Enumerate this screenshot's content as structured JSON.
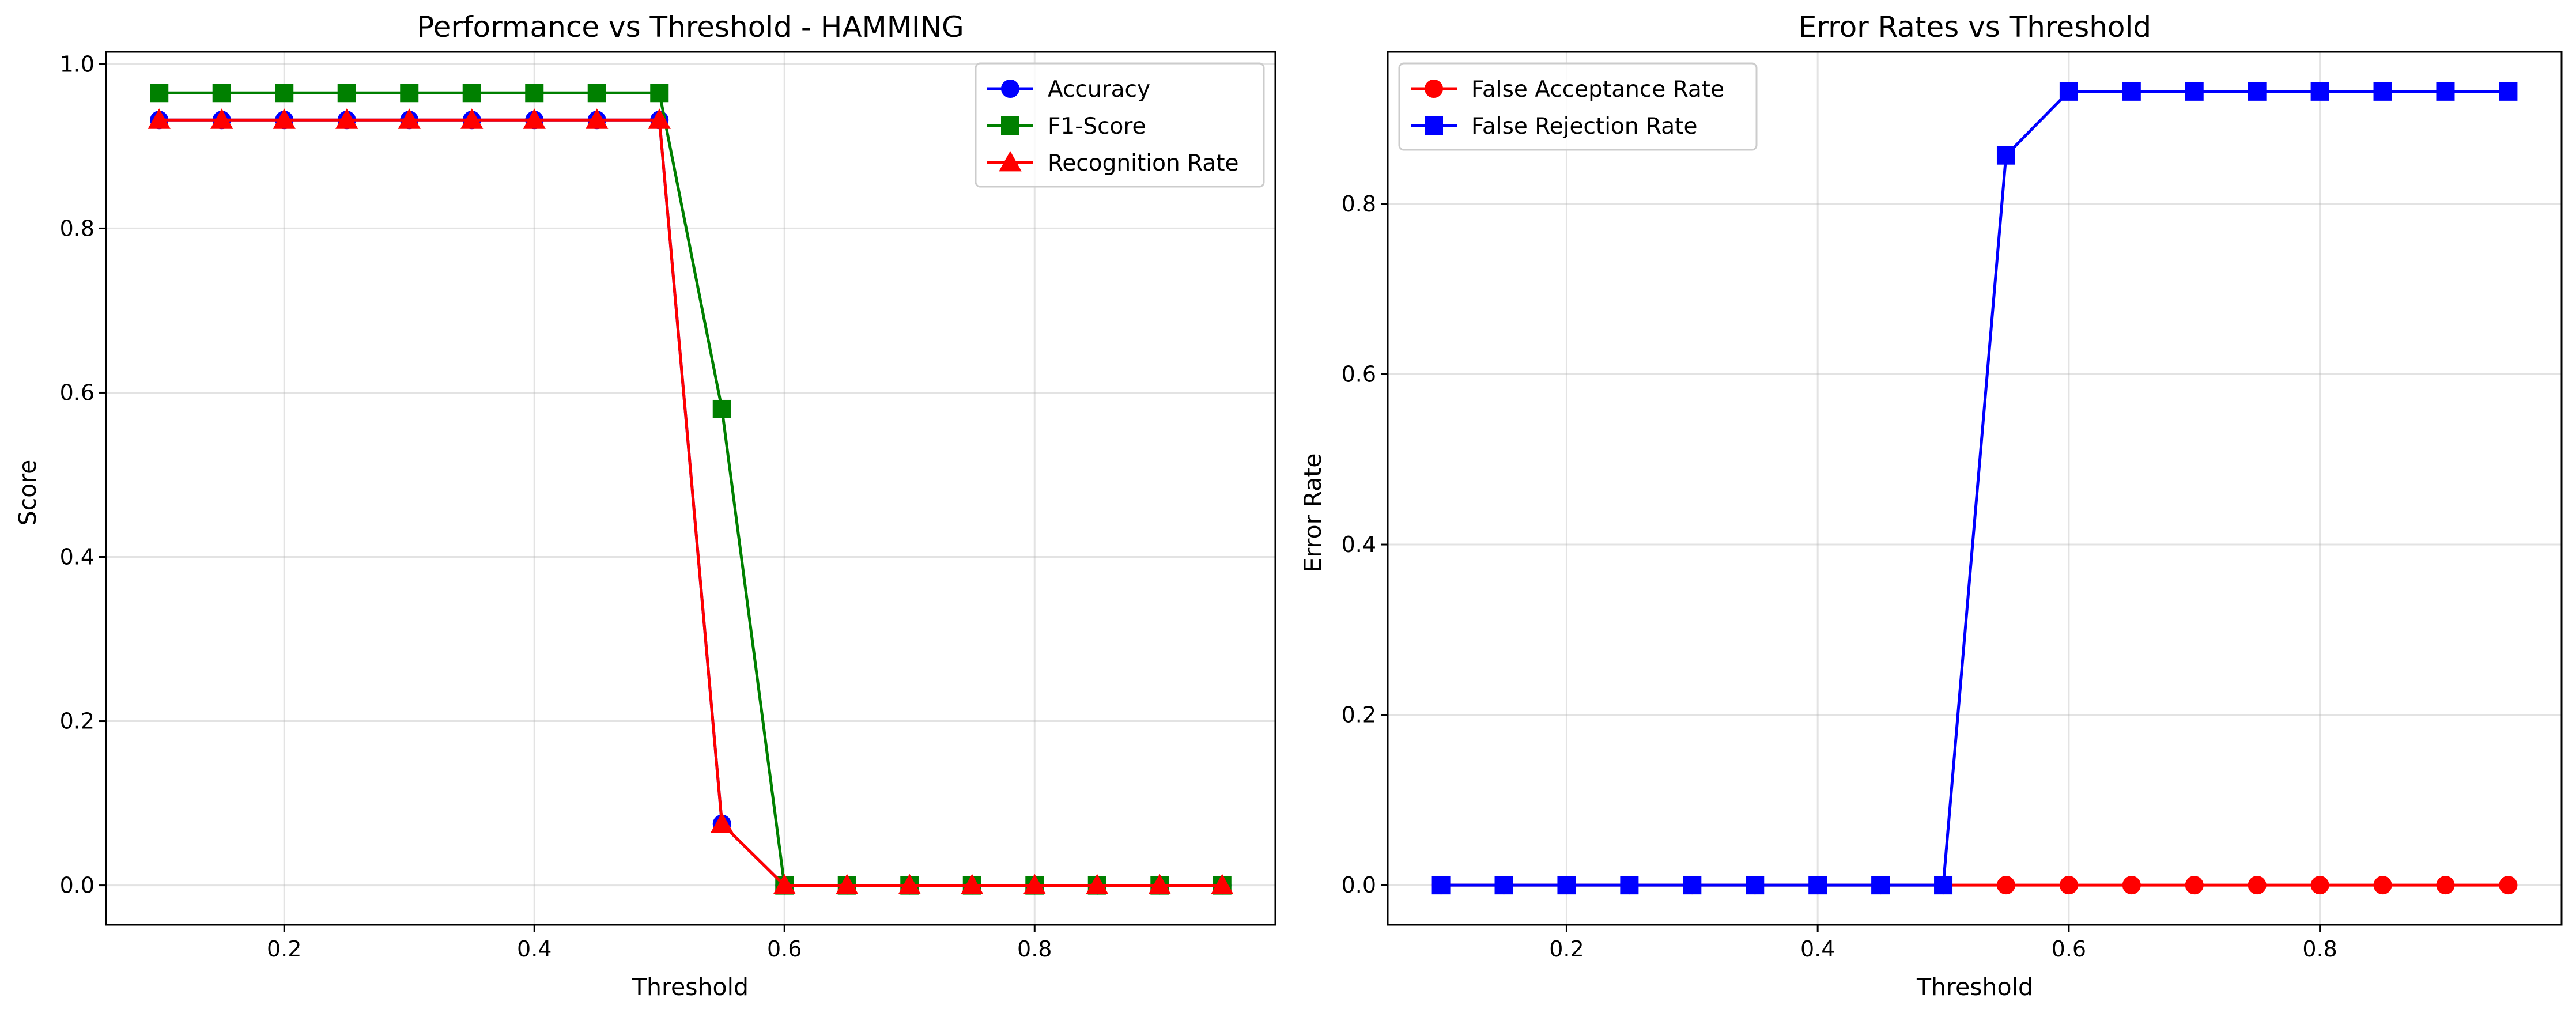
{
  "chart_data": [
    {
      "type": "line",
      "title": "Performance vs Threshold - HAMMING",
      "xlabel": "Threshold",
      "ylabel": "Score",
      "xlim": [
        0.0575,
        0.9925
      ],
      "ylim": [
        -0.048,
        1.015
      ],
      "xticks": [
        0.2,
        0.4,
        0.6,
        0.8
      ],
      "xtick_labels": [
        "0.2",
        "0.4",
        "0.6",
        "0.8"
      ],
      "yticks": [
        0.0,
        0.2,
        0.4,
        0.6,
        0.8,
        1.0
      ],
      "ytick_labels": [
        "0.0",
        "0.2",
        "0.4",
        "0.6",
        "0.8",
        "1.0"
      ],
      "grid": true,
      "legend_position": "top-right",
      "x": [
        0.1,
        0.15,
        0.2,
        0.25,
        0.3,
        0.35,
        0.4,
        0.45,
        0.5,
        0.55,
        0.6,
        0.65,
        0.7,
        0.75,
        0.8,
        0.85,
        0.9,
        0.95
      ],
      "series": [
        {
          "name": "Accuracy",
          "color": "#0000ff",
          "marker": "circle",
          "values": [
            0.932,
            0.932,
            0.932,
            0.932,
            0.932,
            0.932,
            0.932,
            0.932,
            0.932,
            0.075,
            0.0,
            0.0,
            0.0,
            0.0,
            0.0,
            0.0,
            0.0,
            0.0
          ]
        },
        {
          "name": "F1-Score",
          "color": "#008000",
          "marker": "square",
          "values": [
            0.965,
            0.965,
            0.965,
            0.965,
            0.965,
            0.965,
            0.965,
            0.965,
            0.965,
            0.58,
            0.0,
            0.0,
            0.0,
            0.0,
            0.0,
            0.0,
            0.0,
            0.0
          ]
        },
        {
          "name": "Recognition Rate",
          "color": "#ff0000",
          "marker": "triangle",
          "values": [
            0.932,
            0.932,
            0.932,
            0.932,
            0.932,
            0.932,
            0.932,
            0.932,
            0.932,
            0.075,
            0.0,
            0.0,
            0.0,
            0.0,
            0.0,
            0.0,
            0.0,
            0.0
          ]
        }
      ]
    },
    {
      "type": "line",
      "title": "Error Rates vs Threshold",
      "xlabel": "Threshold",
      "ylabel": "Error Rate",
      "xlim": [
        0.0575,
        0.9925
      ],
      "ylim": [
        -0.0466,
        0.9786
      ],
      "xticks": [
        0.2,
        0.4,
        0.6,
        0.8
      ],
      "xtick_labels": [
        "0.2",
        "0.4",
        "0.6",
        "0.8"
      ],
      "yticks": [
        0.0,
        0.2,
        0.4,
        0.6,
        0.8
      ],
      "ytick_labels": [
        "0.0",
        "0.2",
        "0.4",
        "0.6",
        "0.8"
      ],
      "grid": true,
      "legend_position": "top-left",
      "x": [
        0.1,
        0.15,
        0.2,
        0.25,
        0.3,
        0.35,
        0.4,
        0.45,
        0.5,
        0.55,
        0.6,
        0.65,
        0.7,
        0.75,
        0.8,
        0.85,
        0.9,
        0.95
      ],
      "series": [
        {
          "name": "False Acceptance Rate",
          "color": "#ff0000",
          "marker": "circle",
          "values": [
            0.0,
            0.0,
            0.0,
            0.0,
            0.0,
            0.0,
            0.0,
            0.0,
            0.0,
            0.0,
            0.0,
            0.0,
            0.0,
            0.0,
            0.0,
            0.0,
            0.0,
            0.0
          ]
        },
        {
          "name": "False Rejection Rate",
          "color": "#0000ff",
          "marker": "square",
          "values": [
            0.0,
            0.0,
            0.0,
            0.0,
            0.0,
            0.0,
            0.0,
            0.0,
            0.0,
            0.857,
            0.932,
            0.932,
            0.932,
            0.932,
            0.932,
            0.932,
            0.932,
            0.932
          ]
        }
      ]
    }
  ]
}
